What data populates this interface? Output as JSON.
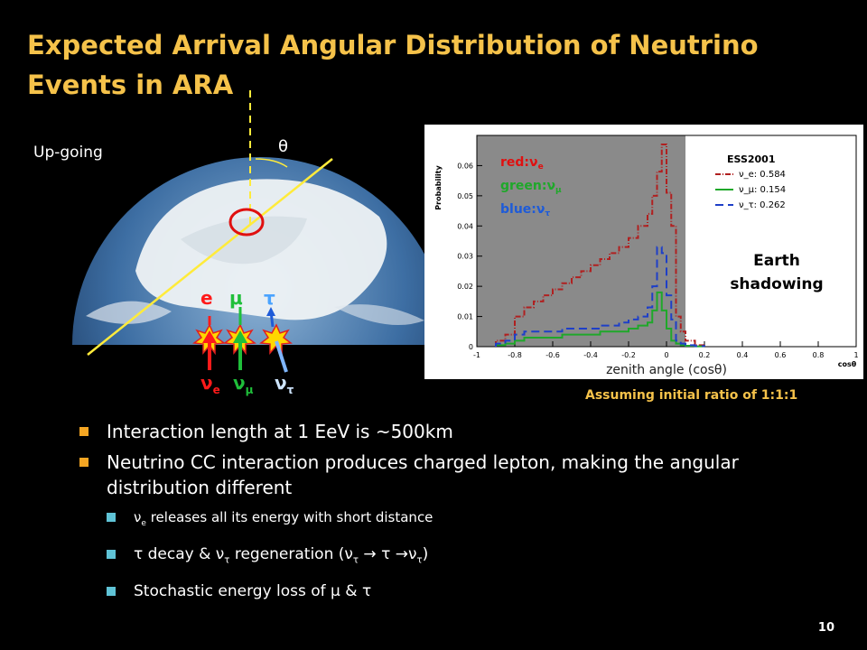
{
  "slide": {
    "title": "Expected Arrival Angular Distribution of Neutrino Events in ARA",
    "page_number": "10",
    "ratio_note": "Assuming initial ratio of 1:1:1"
  },
  "figure": {
    "up_going_label": "Up-going",
    "theta_label": "θ",
    "leptons": {
      "e": "e",
      "mu": "μ",
      "tau": "τ"
    },
    "neutrinos": {
      "nu": "ν",
      "e": "e",
      "mu": "μ",
      "tau": "τ"
    }
  },
  "colors": {
    "accent": "#f5c24a",
    "nu_e": "#ff1a1a",
    "nu_mu": "#1fbf3a",
    "nu_tau": "#1e5bd8",
    "bullet1": "#f5a623",
    "bullet2": "#5fc3d6"
  },
  "bullets": {
    "l1a": "Interaction length at 1 EeV is ~500km",
    "l1b": "Neutrino CC interaction produces charged lepton, making the angular distribution different",
    "l2a_pre": "ν",
    "l2a_sub": "e",
    "l2a_post": " releases all its energy with short distance",
    "l2b": {
      "t1": "τ decay  & ν",
      "s1": "τ",
      "t2": " regeneration (ν",
      "s2": "τ",
      "t3": " → τ →ν",
      "s3": "τ",
      "t4": ")"
    },
    "l2c": "Stochastic energy loss of μ & τ"
  },
  "chart_data": {
    "type": "line",
    "title": "",
    "xlabel": "cosθ",
    "ylabel": "Probability",
    "xlim": [
      -1,
      1
    ],
    "ylim": [
      0,
      0.07
    ],
    "x_ticks": [
      "-1",
      "-0.8",
      "-0.6",
      "-0.4",
      "-0.2",
      "0",
      "0.2",
      "0.4",
      "0.6",
      "0.8",
      "1"
    ],
    "y_ticks": [
      "0",
      "0.01",
      "0.02",
      "0.03",
      "0.04",
      "0.05",
      "0.06"
    ],
    "shaded_region": [
      -1,
      0.1
    ],
    "bin_edges": [
      -0.9,
      -0.85,
      -0.8,
      -0.75,
      -0.7,
      -0.65,
      -0.6,
      -0.55,
      -0.5,
      -0.45,
      -0.4,
      -0.35,
      -0.3,
      -0.25,
      -0.2,
      -0.15,
      -0.1,
      -0.075,
      -0.05,
      -0.025,
      0,
      0.025,
      0.05,
      0.075,
      0.1,
      0.15,
      0.2
    ],
    "series": [
      {
        "name": "ν_e: 0.584",
        "color": "#b02020",
        "dash": "6,2,1,2",
        "values": [
          0.002,
          0.004,
          0.01,
          0.013,
          0.015,
          0.017,
          0.019,
          0.021,
          0.023,
          0.025,
          0.027,
          0.029,
          0.031,
          0.033,
          0.036,
          0.04,
          0.044,
          0.05,
          0.058,
          0.067,
          0.051,
          0.04,
          0.01,
          0.005,
          0.002,
          0.0005
        ]
      },
      {
        "name": "ν_μ: 0.154",
        "color": "#1fa82a",
        "dash": "",
        "values": [
          0.0005,
          0.001,
          0.002,
          0.003,
          0.003,
          0.003,
          0.003,
          0.004,
          0.004,
          0.004,
          0.004,
          0.005,
          0.005,
          0.005,
          0.006,
          0.007,
          0.008,
          0.012,
          0.018,
          0.012,
          0.006,
          0.002,
          0.001,
          0.0005,
          0.0003,
          0.0001
        ]
      },
      {
        "name": "ν_τ: 0.262",
        "color": "#1e3fc8",
        "dash": "9,5",
        "values": [
          0.001,
          0.002,
          0.004,
          0.005,
          0.005,
          0.005,
          0.005,
          0.006,
          0.006,
          0.006,
          0.006,
          0.007,
          0.007,
          0.008,
          0.009,
          0.01,
          0.013,
          0.02,
          0.033,
          0.031,
          0.017,
          0.009,
          0.002,
          0.001,
          0.0005,
          0.0002
        ]
      }
    ],
    "legend_title": "ESS2001",
    "overlay": {
      "red": {
        "pre": "red:ν",
        "sub": "e"
      },
      "green": {
        "pre": "green:ν",
        "sub": "μ"
      },
      "blue": {
        "pre": "blue:ν",
        "sub": "τ"
      }
    },
    "shadow_label": [
      "Earth",
      "shadowing"
    ],
    "axis_caption": "zenith angle (cosθ)"
  }
}
